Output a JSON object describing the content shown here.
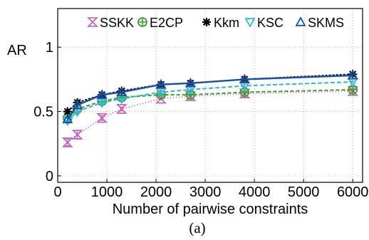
{
  "chart_data": {
    "type": "line",
    "caption": "(a)",
    "ylabel": "AR",
    "xlabel": "Number of pairwise constraints",
    "xlim": [
      0,
      6200
    ],
    "ylim": [
      -0.05,
      1.3
    ],
    "xticks": [
      0,
      1000,
      2000,
      3000,
      4000,
      5000,
      6000
    ],
    "yticks": [
      0,
      0.5,
      1
    ],
    "ytick_labels": [
      "0",
      "0.5",
      "1"
    ],
    "grid": "dotted",
    "legend_position": "top",
    "x": [
      200,
      400,
      900,
      1300,
      2100,
      2700,
      3800,
      6000
    ],
    "series": [
      {
        "name": "SSKK",
        "color": "#c45ab3",
        "dash": "1,3",
        "marker": "hourglass",
        "values": [
          0.26,
          0.32,
          0.45,
          0.52,
          0.6,
          0.62,
          0.64,
          0.66
        ],
        "err": [
          0.025,
          0.03,
          0.02,
          0.015,
          0.01,
          0.01,
          0.01,
          0.01
        ]
      },
      {
        "name": "E2CP",
        "color": "#3c9e2c",
        "dash": "5,3",
        "marker": "circle-plus",
        "values": [
          0.45,
          0.52,
          0.58,
          0.61,
          0.63,
          0.63,
          0.65,
          0.67
        ],
        "err": [
          0.02,
          0.02,
          0.015,
          0.01,
          0.01,
          0.01,
          0.01,
          0.01
        ]
      },
      {
        "name": "Kkm",
        "color": "#000000",
        "dash": "3,2",
        "marker": "asterisk",
        "values": [
          0.5,
          0.57,
          0.63,
          0.66,
          0.71,
          0.72,
          0.75,
          0.79
        ],
        "err": [
          0.015,
          0.015,
          0.01,
          0.01,
          0.01,
          0.01,
          0.01,
          0.01
        ]
      },
      {
        "name": "KSC",
        "color": "#2fb6d6",
        "dash": "6,3",
        "marker": "triangle-down",
        "values": [
          0.43,
          0.5,
          0.57,
          0.6,
          0.65,
          0.67,
          0.7,
          0.73
        ],
        "err": [
          0.02,
          0.02,
          0.015,
          0.015,
          0.01,
          0.01,
          0.01,
          0.01
        ]
      },
      {
        "name": "SKMS",
        "color": "#1a4fa3",
        "dash": "",
        "marker": "triangle-up",
        "values": [
          0.44,
          0.55,
          0.63,
          0.65,
          0.71,
          0.72,
          0.75,
          0.78
        ],
        "err": [
          0.02,
          0.02,
          0.015,
          0.01,
          0.01,
          0.01,
          0.01,
          0.01
        ]
      }
    ]
  }
}
